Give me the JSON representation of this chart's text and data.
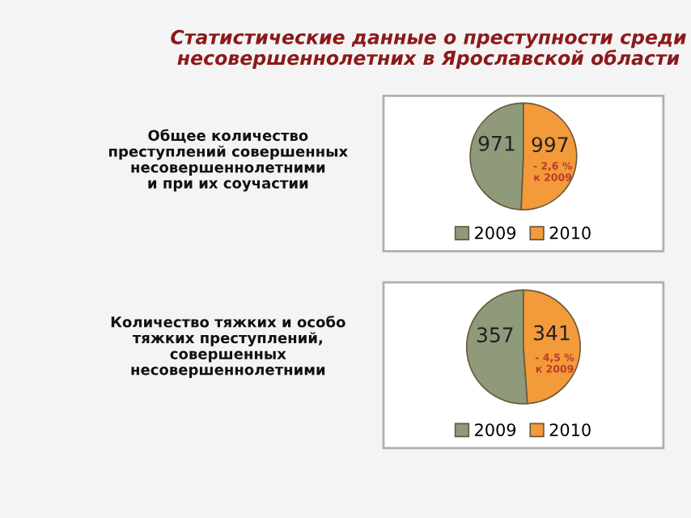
{
  "chart_data": [
    {
      "type": "pie",
      "title": "Статистические данные о преступности среди\nнесовершеннолетних в Ярославской области",
      "subtitle": "Общее количество\nпреступлений совершенных\nнесовершеннолетними\nи при их соучастии",
      "categories": [
        "2009",
        "2010"
      ],
      "values": [
        971,
        997
      ],
      "colors": [
        "#8f9a7a",
        "#f39a3a"
      ],
      "data_labels": true,
      "legend": "bottom",
      "annotations": [
        "- 2,6 %\nк 2009"
      ]
    },
    {
      "type": "pie",
      "subtitle": "Количество тяжких и особо\nтяжких преступлений,\nсовершенных\nнесовершеннолетними",
      "categories": [
        "2009",
        "2010"
      ],
      "values": [
        357,
        341
      ],
      "colors": [
        "#8f9a7a",
        "#f39a3a"
      ],
      "data_labels": true,
      "legend": "bottom",
      "annotations": [
        "- 4,5 %\nк 2009"
      ]
    }
  ]
}
